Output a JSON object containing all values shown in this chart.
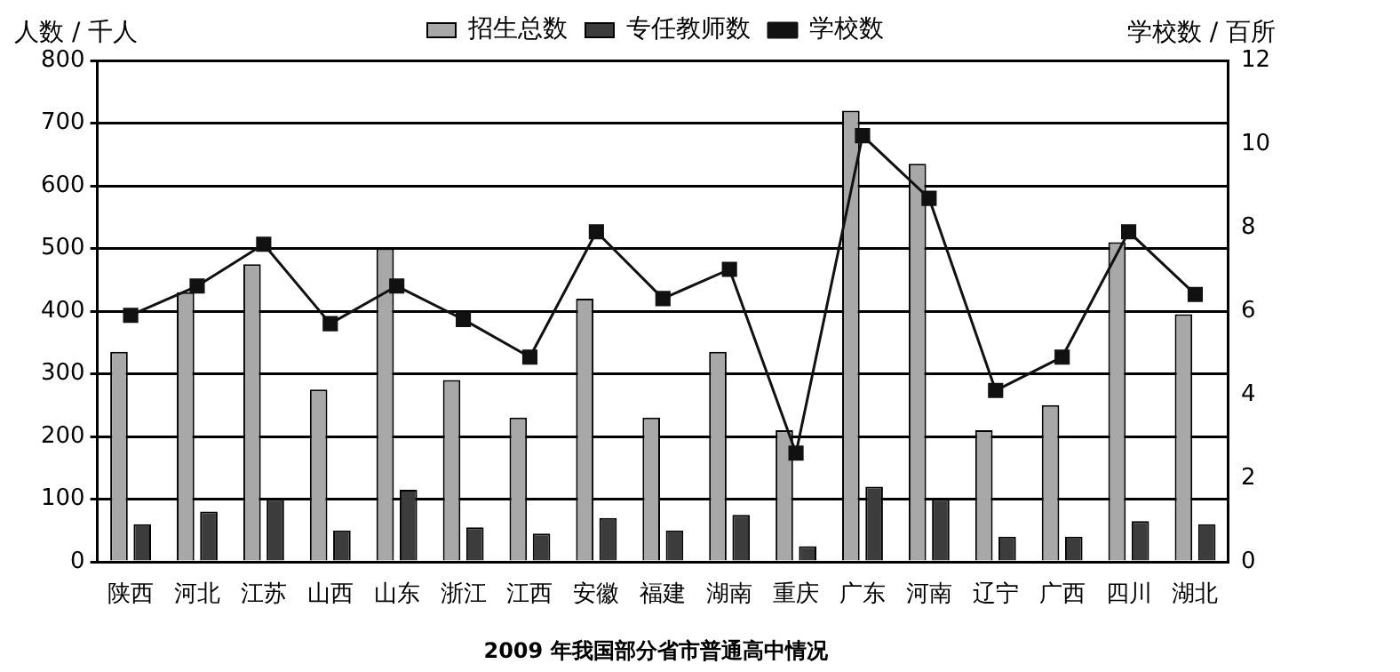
{
  "chart_data": {
    "type": "bar",
    "title": "2009 年我国部分省市普通高中情况",
    "ylabel": "人数 / 千人",
    "y2label": "学校数 / 百所",
    "categories": [
      "陕西",
      "河北",
      "江苏",
      "山西",
      "山东",
      "浙江",
      "江西",
      "安徽",
      "福建",
      "湖南",
      "重庆",
      "广东",
      "河南",
      "辽宁",
      "广西",
      "四川",
      "湖北"
    ],
    "series": [
      {
        "name": "招生总数",
        "color": "#a8a8a8",
        "values": [
          335,
          430,
          475,
          275,
          500,
          290,
          230,
          420,
          230,
          335,
          210,
          720,
          635,
          210,
          250,
          510,
          395
        ]
      },
      {
        "name": "专任教师数",
        "color": "#3c3c3c",
        "values": [
          60,
          80,
          100,
          50,
          115,
          55,
          45,
          70,
          50,
          75,
          25,
          120,
          100,
          40,
          40,
          65,
          60
        ]
      },
      {
        "name": "学校数",
        "type": "line",
        "axis": "y2",
        "color": "#111111",
        "marker": "square",
        "values": [
          5.9,
          6.6,
          7.6,
          5.7,
          6.6,
          5.8,
          4.9,
          7.9,
          6.3,
          7,
          2.6,
          10.2,
          8.7,
          4.1,
          4.9,
          7.9,
          6.4
        ]
      }
    ],
    "ylim": [
      0,
      800
    ],
    "yticks": [
      0,
      100,
      200,
      300,
      400,
      500,
      600,
      700,
      800
    ],
    "y2lim": [
      0,
      12
    ],
    "y2ticks": [
      0,
      2,
      4,
      6,
      8,
      10,
      12
    ],
    "grid": "y",
    "legend": "top"
  }
}
